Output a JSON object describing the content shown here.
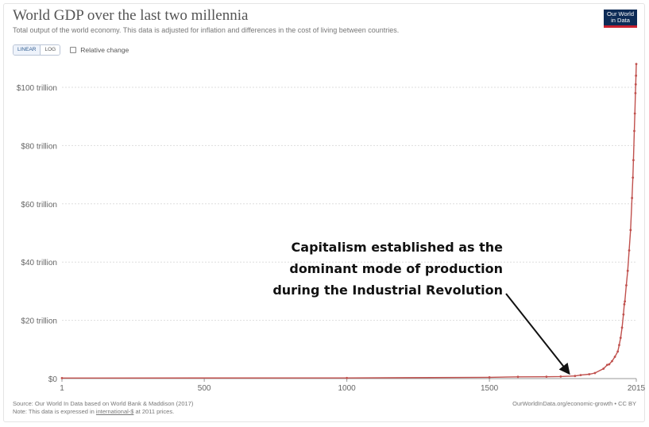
{
  "header": {
    "title": "World GDP over the last two millennia",
    "subtitle": "Total output of the world economy. This data is adjusted for inflation and differences in the cost of living between countries.",
    "logo_line1": "Our World",
    "logo_line2": "in Data"
  },
  "controls": {
    "linear_label": "LINEAR",
    "log_label": "LOG",
    "relative_change_label": "Relative change"
  },
  "annotation": {
    "line1": "Capitalism established as the",
    "line2": "dominant mode of production",
    "line3": "during the Industrial Revolution",
    "points_to_year": 1820
  },
  "footer": {
    "source": "Source: Our World In Data based on World Bank & Maddison (2017)",
    "note_prefix": "Note: This data is expressed in ",
    "note_link": "international-$",
    "note_suffix": " at 2011 prices.",
    "right": "OurWorldInData.org/economic-growth • CC BY"
  },
  "colors": {
    "line": "#c0504d",
    "grid": "#dddddd",
    "annotation_arrow": "#111111"
  },
  "chart_data": {
    "type": "line",
    "title": "World GDP over the last two millennia",
    "xlabel": "",
    "ylabel": "",
    "xlim": [
      1,
      2015
    ],
    "ylim": [
      0,
      110
    ],
    "y_unit": "trillion",
    "grid": true,
    "x_ticks": [
      "1",
      "500",
      "1000",
      "1500",
      "2015"
    ],
    "x_tick_values": [
      1,
      500,
      1000,
      1500,
      2015
    ],
    "y_ticks": [
      "$0",
      "$20 trillion",
      "$40 trillion",
      "$60 trillion",
      "$80 trillion",
      "$100 trillion"
    ],
    "y_tick_values": [
      0,
      20,
      40,
      60,
      80,
      100
    ],
    "series": [
      {
        "x": [
          1,
          1000,
          1500,
          1600,
          1700,
          1750,
          1800,
          1820,
          1850,
          1870,
          1900,
          1913,
          1920,
          1930,
          1940,
          1950,
          1955,
          1960,
          1965,
          1970,
          1973,
          1975,
          1980,
          1985,
          1990,
          1995,
          2000,
          2003,
          2005,
          2008,
          2010,
          2012,
          2013,
          2014,
          2015
        ],
        "values": [
          0.18,
          0.21,
          0.43,
          0.6,
          0.64,
          0.7,
          0.9,
          1.2,
          1.5,
          1.9,
          3.4,
          4.7,
          4.9,
          6.0,
          7.5,
          9.3,
          11.5,
          14.0,
          17.5,
          22.0,
          25.5,
          26.5,
          32.0,
          37.0,
          44.0,
          51.0,
          62.0,
          69.0,
          75.0,
          85.0,
          91.0,
          98.0,
          101.0,
          104.0,
          108.0
        ]
      }
    ]
  }
}
